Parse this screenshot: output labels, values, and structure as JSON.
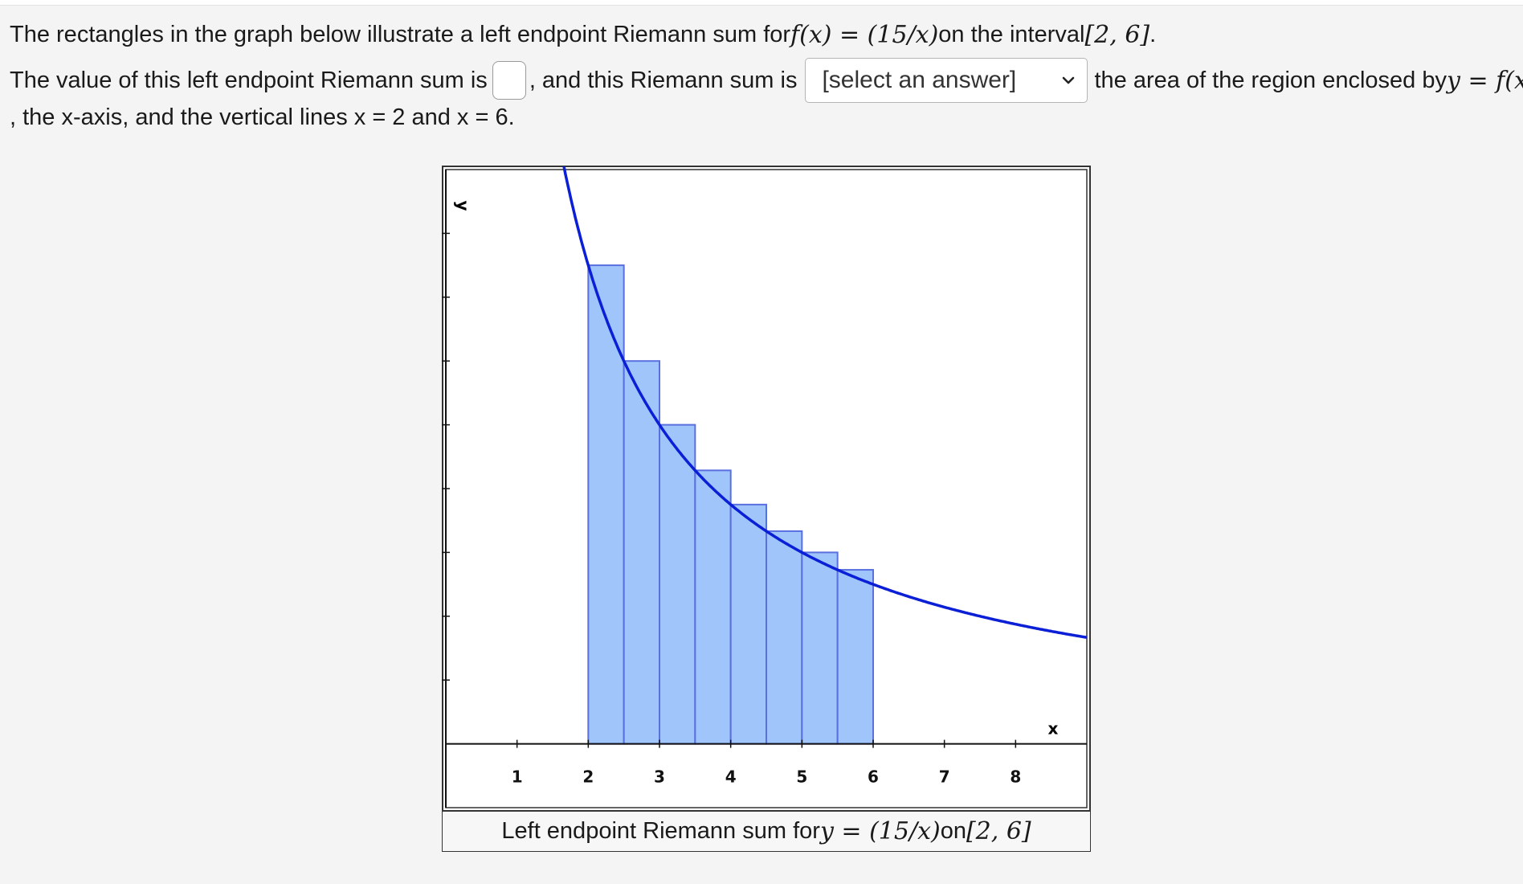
{
  "question": {
    "l1_pre": "The rectangles in the graph below illustrate a left endpoint Riemann sum for ",
    "l1_math": "f(x) = (15/x)",
    "l1_mid": " on the interval ",
    "l1_interval": "[2, 6]",
    "l1_end": ".",
    "l2_pre": "The value of this left endpoint Riemann sum is",
    "l2_mid": ", and this Riemann sum is",
    "select_value": "[select an answer]",
    "l2_post": "the area of the region enclosed by ",
    "l2_math": "y = f(x)",
    "l3": ", the x-axis, and the vertical lines x = 2 and x = 6."
  },
  "graph": {
    "caption_pre": "Left endpoint Riemann sum for ",
    "caption_math": "y = (15/x)",
    "caption_mid": " on ",
    "caption_interval": "[2, 6]",
    "x_axis_label": "x",
    "y_axis_label": "y",
    "colors": {
      "curve": "#0a1fd6",
      "rect_fill": "#9fc5fb",
      "rect_stroke": "#5a6fe0",
      "axis": "#111111"
    }
  },
  "chart_data": {
    "type": "area",
    "function": "15/x",
    "interval": [
      2,
      6
    ],
    "method": "left endpoint",
    "subintervals": 8,
    "rect_left_x": [
      2,
      2.5,
      3,
      3.5,
      4,
      4.5,
      5,
      5.5
    ],
    "rect_heights": [
      7.5,
      6,
      5,
      4.2857,
      3.75,
      3.3333,
      3,
      2.7273
    ],
    "xlim": [
      0,
      9
    ],
    "ylim": [
      -1,
      9
    ],
    "x_ticks": [
      1,
      2,
      3,
      4,
      5,
      6,
      7,
      8
    ],
    "y_ticks": [
      1,
      2,
      3,
      4,
      5,
      6,
      7,
      8
    ],
    "xlabel": "x",
    "ylabel": "y",
    "grid": false
  }
}
